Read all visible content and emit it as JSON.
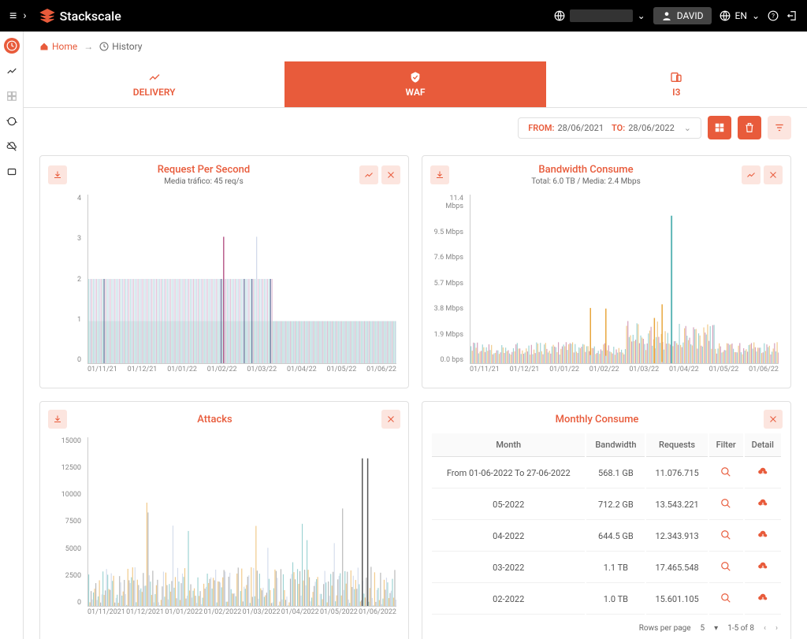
{
  "brand": {
    "name": "Stackscale",
    "accent": "#e85b3b"
  },
  "header": {
    "user": "DAVID",
    "lang": "EN"
  },
  "breadcrumb": {
    "home": "Home",
    "current": "History"
  },
  "tabs": [
    {
      "label": "DELIVERY",
      "active": false
    },
    {
      "label": "WAF",
      "active": true
    },
    {
      "label": "I3",
      "active": false
    }
  ],
  "filter": {
    "from_label": "FROM:",
    "from_value": "28/06/2021",
    "to_label": "TO:",
    "to_value": "28/06/2022"
  },
  "panels": {
    "rps": {
      "title": "Request Per Second",
      "subtitle": "Media tráfico: 45 req/s",
      "ylim": [
        0,
        4
      ],
      "yticks": [
        "4",
        "3",
        "2",
        "1",
        "0"
      ],
      "xticks": [
        "01/11/21",
        "01/12/21",
        "01/01/22",
        "01/02/22",
        "01/03/22",
        "01/04/22",
        "01/05/22",
        "01/06/22"
      ],
      "series_colors": [
        "#a5d8d8",
        "#b8c5e0",
        "#d6a5c5",
        "#e85b3b"
      ],
      "band_color": "#cce8e0"
    },
    "bandwidth": {
      "title": "Bandwidth Consume",
      "subtitle": "Total: 6.0 TB / Media: 2.4 Mbps",
      "ylim": [
        0,
        11.4
      ],
      "yticks": [
        "11.4 Mbps",
        "9.5 Mbps",
        "7.6 Mbps",
        "5.7 Mbps",
        "3.8 Mbps",
        "1.9 Mbps",
        "0.0 bps"
      ],
      "xticks": [
        "01/11/21",
        "01/12/21",
        "01/01/22",
        "01/02/22",
        "01/03/22",
        "01/04/22",
        "01/05/22",
        "01/06/22"
      ],
      "series_colors": [
        "#5bb5b5",
        "#e8a53b",
        "#b85b8b"
      ],
      "spike_color": "#5bb5b5"
    },
    "attacks": {
      "title": "Attacks",
      "ylim": [
        0,
        15000
      ],
      "yticks": [
        "15000",
        "12500",
        "10000",
        "7500",
        "5000",
        "2500",
        "0"
      ],
      "xticks": [
        "01/11/2021",
        "01/12/2021",
        "01/01/2022",
        "01/02/2022",
        "01/03/2022",
        "01/04/2022",
        "01/05/2022",
        "01/06/2022"
      ],
      "series_colors": [
        "#5bb5b5",
        "#e8a53b",
        "#888",
        "#b8c5e0"
      ]
    },
    "monthly": {
      "title": "Monthly Consume",
      "columns": [
        "Month",
        "Bandwidth",
        "Requests",
        "Filter",
        "Detail"
      ],
      "rows": [
        {
          "month": "From 01-06-2022 To 27-06-2022",
          "bandwidth": "568.1 GB",
          "requests": "11.076.715"
        },
        {
          "month": "05-2022",
          "bandwidth": "712.2 GB",
          "requests": "13.543.221"
        },
        {
          "month": "04-2022",
          "bandwidth": "644.5 GB",
          "requests": "12.343.913"
        },
        {
          "month": "03-2022",
          "bandwidth": "1.1 TB",
          "requests": "17.465.548"
        },
        {
          "month": "02-2022",
          "bandwidth": "1.0 TB",
          "requests": "15.601.105"
        }
      ],
      "pagination": {
        "rows_per_page_label": "Rows per page",
        "rows_per_page_value": "5",
        "range": "1-5 of 8"
      }
    }
  }
}
